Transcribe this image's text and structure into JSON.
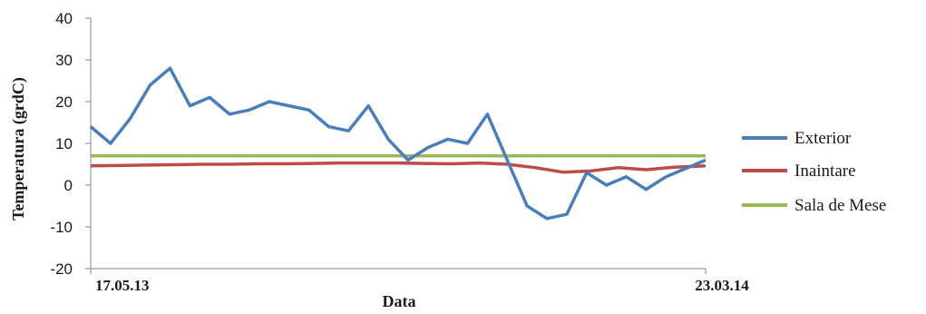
{
  "chart_data": {
    "type": "line",
    "xlabel": "Data",
    "ylabel": "Temperatura (grdC)",
    "x_tick_labels": [
      "17.05.13",
      "23.03.14"
    ],
    "x_range": [
      "17.05.13",
      "23.03.14"
    ],
    "ylim": [
      -20,
      40
    ],
    "y_ticks": [
      -20,
      -10,
      0,
      10,
      20,
      30,
      40
    ],
    "grid": false,
    "legend_position": "right",
    "series": [
      {
        "name": "Exterior",
        "color": "#4a7ebb",
        "x": [
          "17.05.13",
          "27.05.13",
          "06.06.13",
          "16.06.13",
          "26.06.13",
          "06.07.13",
          "16.07.13",
          "26.07.13",
          "05.08.13",
          "15.08.13",
          "25.08.13",
          "04.09.13",
          "14.09.13",
          "24.09.13",
          "04.10.13",
          "14.10.13",
          "24.10.13",
          "03.11.13",
          "13.11.13",
          "23.11.13",
          "03.12.13",
          "13.12.13",
          "23.12.13",
          "02.01.14",
          "12.01.14",
          "22.01.14",
          "01.02.14",
          "11.02.14",
          "21.02.14",
          "03.03.14",
          "13.03.14",
          "23.03.14"
        ],
        "values": [
          14,
          10,
          16,
          24,
          28,
          19,
          21,
          17,
          18,
          20,
          19,
          18,
          14,
          13,
          19,
          11,
          6,
          9,
          11,
          10,
          17,
          6,
          -5,
          -8,
          -7,
          3,
          0,
          2,
          -1,
          2,
          4,
          6
        ]
      },
      {
        "name": "Inaintare",
        "color": "#be4b48",
        "x": [
          "17.05.13",
          "31.05.13",
          "14.06.13",
          "28.06.13",
          "12.07.13",
          "26.07.13",
          "09.08.13",
          "23.08.13",
          "06.09.13",
          "20.09.13",
          "04.10.13",
          "18.10.13",
          "01.11.13",
          "15.11.13",
          "29.11.13",
          "13.12.13",
          "27.12.13",
          "10.01.14",
          "24.01.14",
          "07.02.14",
          "21.02.14",
          "07.03.14",
          "23.03.14"
        ],
        "values": [
          4.6,
          4.7,
          4.8,
          4.9,
          5.0,
          5.0,
          5.1,
          5.1,
          5.2,
          5.3,
          5.3,
          5.3,
          5.2,
          5.1,
          5.3,
          5.0,
          4.2,
          3.1,
          3.4,
          4.2,
          3.7,
          4.3,
          4.6
        ]
      },
      {
        "name": "Sala de Mese",
        "color": "#98b954",
        "x": [
          "17.05.13",
          "23.03.14"
        ],
        "values": [
          7.0,
          7.0
        ]
      }
    ]
  }
}
